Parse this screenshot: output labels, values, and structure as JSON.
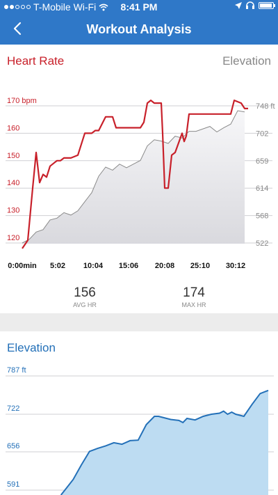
{
  "status_bar": {
    "carrier": "T-Mobile Wi-Fi",
    "time": "8:41 PM",
    "battery_level": 0.95,
    "signal_bars": 2,
    "icons": [
      "signal-dots-icon",
      "wifi-icon",
      "location-arrow-icon",
      "headphones-icon",
      "battery-icon"
    ]
  },
  "nav": {
    "title": "Workout Analysis",
    "back_icon": "chevron-left-icon"
  },
  "heart_rate_card": {
    "title": "Heart Rate",
    "secondary_title": "Elevation",
    "avg_hr": {
      "value": "156",
      "label": "AVG HR"
    },
    "max_hr": {
      "value": "174",
      "label": "MAX HR"
    }
  },
  "elevation_card": {
    "title": "Elevation"
  },
  "colors": {
    "accent_blue": "#2f78c8",
    "heart_red": "#c8202a",
    "elevation_blue": "#2370b8",
    "elevation_fill": "#bddcf2"
  },
  "chart_data": [
    {
      "type": "line",
      "title": "Heart Rate",
      "x_unit": "minutes",
      "x_ticks": [
        "0:00min",
        "5:02",
        "10:04",
        "15:06",
        "20:08",
        "25:10",
        "30:12"
      ],
      "xlim": [
        0,
        33
      ],
      "y_left_ticks": [
        "170 bpm",
        "160",
        "150",
        "140",
        "130",
        "120"
      ],
      "ylim_left": [
        120,
        170
      ],
      "y_right_ticks": [
        "748 ft",
        "702",
        "659",
        "614",
        "568",
        "522"
      ],
      "ylim_right": [
        522,
        748
      ],
      "grid": true,
      "series": [
        {
          "name": "Heart Rate",
          "color": "#c8202a",
          "axis": "left",
          "x": [
            0,
            0.8,
            1.5,
            2.0,
            2.5,
            3.0,
            3.5,
            4.0,
            4.5,
            5.0,
            5.5,
            6.0,
            7.0,
            8.0,
            9.0,
            10.0,
            10.5,
            11.0,
            12.0,
            13.0,
            13.5,
            14.0,
            15.0,
            16.0,
            17.0,
            17.5,
            18.0,
            18.5,
            19.0,
            20.0,
            20.2,
            20.5,
            21.0,
            21.5,
            22.0,
            23.0,
            23.3,
            23.6,
            24.0,
            25.0,
            26.0,
            27.0,
            28.0,
            29.0,
            29.5,
            30.0,
            30.5,
            31.5,
            32.0,
            32.5
          ],
          "y": [
            118,
            121,
            140,
            153,
            142,
            145,
            144,
            148,
            149,
            150,
            150,
            151,
            151,
            152,
            160,
            160,
            161,
            161,
            166,
            166,
            162,
            162,
            162,
            162,
            162,
            164,
            171,
            172,
            171,
            171,
            160,
            140,
            140,
            152,
            153,
            160,
            157,
            159,
            167,
            167,
            167,
            167,
            167,
            167,
            167,
            167,
            172,
            171,
            169,
            169
          ]
        },
        {
          "name": "Elevation",
          "color": "#8a8a8a",
          "axis": "right",
          "x": [
            0,
            1,
            2,
            3,
            4,
            5,
            6,
            7,
            8,
            9,
            10,
            11,
            12,
            13,
            14,
            15,
            16,
            17,
            18,
            19,
            20,
            21,
            22,
            23,
            24,
            25,
            26,
            27,
            28,
            29,
            30,
            31,
            32
          ],
          "y": [
            522,
            528,
            540,
            544,
            560,
            563,
            572,
            568,
            575,
            590,
            605,
            632,
            647,
            642,
            652,
            646,
            652,
            658,
            682,
            692,
            690,
            686,
            698,
            695,
            706,
            706,
            710,
            714,
            705,
            712,
            718,
            740,
            738
          ]
        }
      ]
    },
    {
      "type": "area",
      "title": "Elevation",
      "y_ticks": [
        "787 ft",
        "722",
        "656",
        "591"
      ],
      "ylim": [
        560,
        790
      ],
      "xlim": [
        0,
        33
      ],
      "grid": true,
      "series": [
        {
          "name": "Elevation",
          "color": "#2370b8",
          "x": [
            7.5,
            8.0,
            9.0,
            10.0,
            11.0,
            12.0,
            13.0,
            14.0,
            15.0,
            16.0,
            17.0,
            18.0,
            19.0,
            19.5,
            20.0,
            21.0,
            22.0,
            22.5,
            23.0,
            24.0,
            25.0,
            26.0,
            27.0,
            27.5,
            28.0,
            28.5,
            29.0,
            30.0,
            31.0,
            32.0,
            33.0
          ],
          "y": [
            560,
            570,
            590,
            618,
            644,
            650,
            655,
            661,
            658,
            665,
            666,
            696,
            712,
            712,
            710,
            706,
            704,
            700,
            708,
            705,
            712,
            716,
            718,
            722,
            716,
            720,
            716,
            712,
            735,
            756,
            762
          ]
        }
      ]
    }
  ]
}
